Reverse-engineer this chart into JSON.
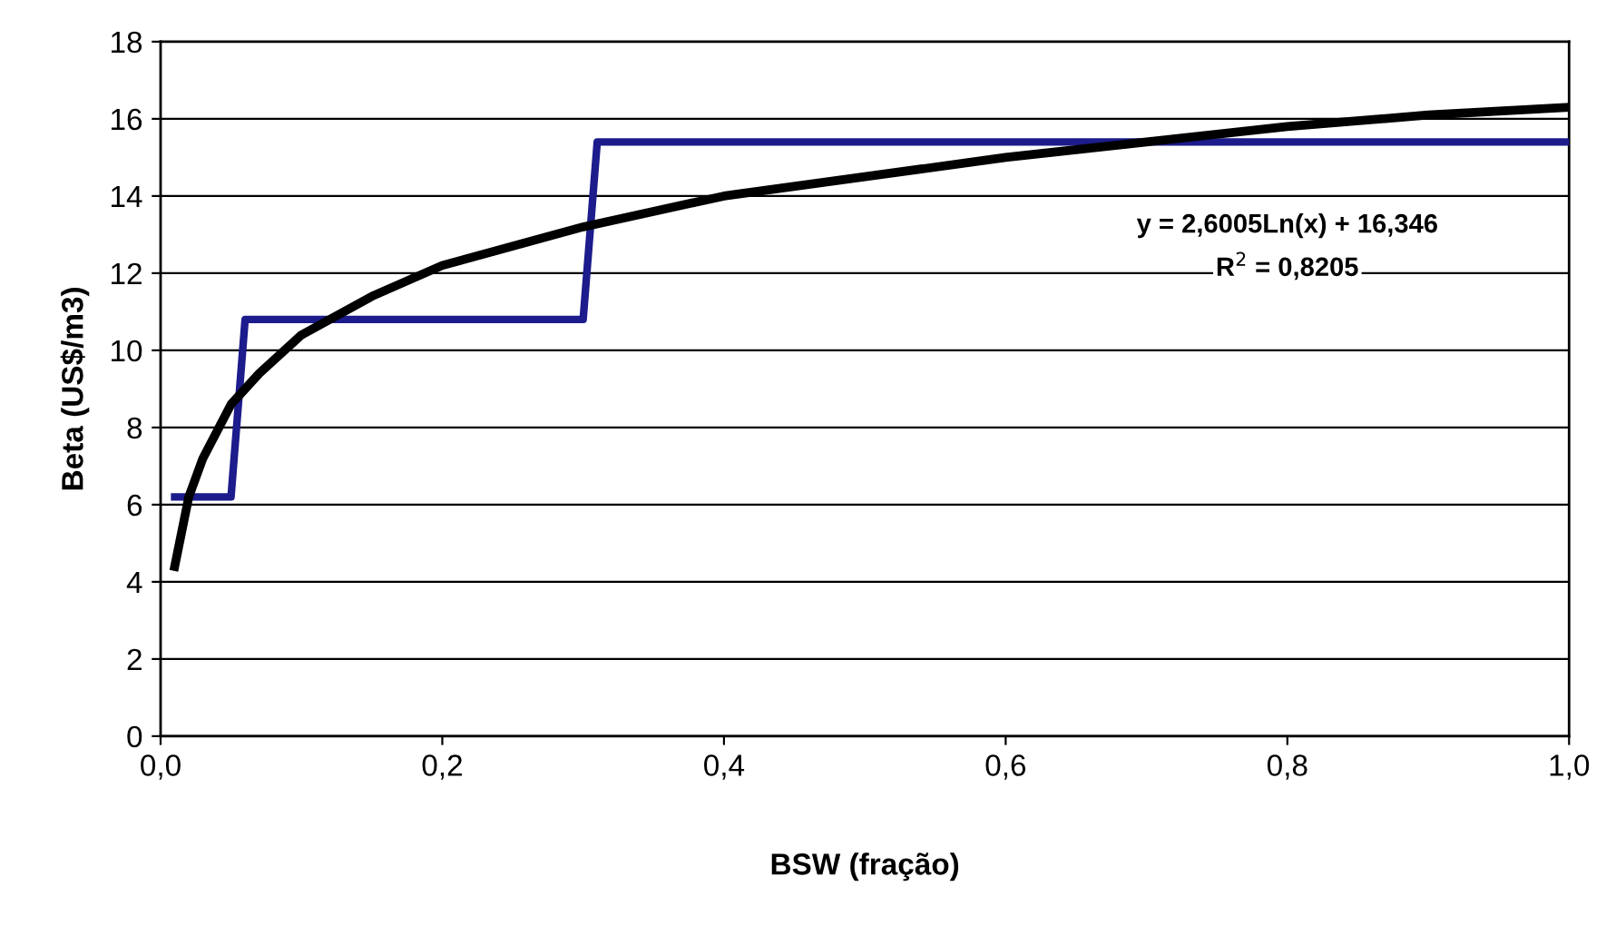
{
  "chart_data": {
    "type": "line",
    "xlabel": "BSW (fração)",
    "ylabel": "Beta (US$/m3)",
    "xlim": [
      0,
      1
    ],
    "xticks": [
      {
        "value": 0,
        "label": "0,0"
      },
      {
        "value": 0.2,
        "label": "0,2"
      },
      {
        "value": 0.4,
        "label": "0,4"
      },
      {
        "value": 0.6,
        "label": "0,6"
      },
      {
        "value": 0.8,
        "label": "0,8"
      },
      {
        "value": 1,
        "label": "1,0"
      }
    ],
    "ylim": [
      0,
      18
    ],
    "yticks": [
      0,
      2,
      4,
      6,
      8,
      10,
      12,
      14,
      16,
      18
    ],
    "grid": "y",
    "legend": false,
    "marker": "none",
    "line_style": "solid",
    "series": [
      {
        "color": "#1c1c8c",
        "x": [
          0.01,
          0.05,
          0.06,
          0.3,
          0.31,
          1.0
        ],
        "values": [
          6.2,
          6.2,
          10.8,
          10.8,
          15.4,
          15.4
        ]
      },
      {
        "color": "#000000",
        "x": [
          0.01,
          0.02,
          0.03,
          0.05,
          0.07,
          0.1,
          0.15,
          0.2,
          0.3,
          0.4,
          0.5,
          0.6,
          0.7,
          0.8,
          0.9,
          1.0
        ],
        "values": [
          4.4,
          6.2,
          7.2,
          8.6,
          9.4,
          10.4,
          11.4,
          12.2,
          13.2,
          14.0,
          14.5,
          15.0,
          15.4,
          15.8,
          16.1,
          16.3
        ]
      }
    ],
    "annotations": [
      "y = 2,6005Ln(x) + 16,346",
      "R$^{2}$ = 0,8205"
    ]
  }
}
